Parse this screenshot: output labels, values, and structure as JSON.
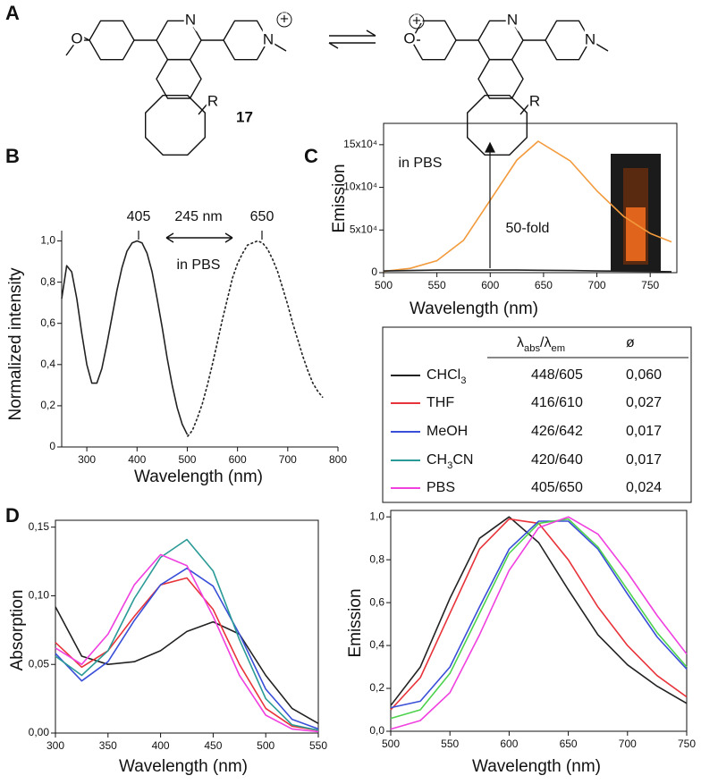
{
  "panel_labels": [
    "A",
    "B",
    "C",
    "D"
  ],
  "structures": {
    "compound": "17",
    "labels": [
      "O",
      "N",
      "N",
      "+",
      "R",
      "O",
      "+",
      "N",
      "N",
      "R"
    ]
  },
  "chart_data": [
    {
      "type": "line",
      "x_label": "Wavelength (nm)",
      "y_label": "Normalized intensity",
      "xlim": [
        250,
        800
      ],
      "ylim": [
        0,
        1.05
      ],
      "xticks": [
        300,
        400,
        500,
        600,
        700,
        800
      ],
      "yticks": [
        0,
        {
          "value": 0.2,
          "label": "0,2"
        },
        {
          "value": 0.4,
          "label": "0,4"
        },
        {
          "value": 0.6,
          "label": "0,6"
        },
        {
          "value": 0.8,
          "label": "0,8"
        },
        {
          "value": 1,
          "label": "1,0"
        }
      ],
      "frame": false,
      "annotations": [
        "405",
        "650",
        "245 nm",
        "in PBS"
      ],
      "x": [
        250,
        260,
        270,
        280,
        290,
        300,
        310,
        320,
        330,
        340,
        350,
        360,
        370,
        380,
        390,
        400,
        410,
        420,
        430,
        440,
        450,
        460,
        470,
        480,
        490,
        500,
        510,
        520,
        530,
        540,
        550,
        560,
        570,
        580,
        590,
        600,
        610,
        620,
        630,
        640,
        650,
        660,
        670,
        680,
        690,
        700,
        710,
        720,
        730,
        740,
        750,
        760,
        770
      ],
      "series": [
        {
          "color": "#222222",
          "line_style": "solid",
          "values": [
            0.72,
            0.88,
            0.85,
            0.72,
            0.55,
            0.4,
            0.31,
            0.31,
            0.38,
            0.5,
            0.63,
            0.76,
            0.87,
            0.95,
            0.99,
            1.0,
            0.99,
            0.94,
            0.85,
            0.72,
            0.58,
            0.43,
            0.3,
            0.19,
            0.11,
            0.06,
            null,
            null,
            null,
            null,
            null,
            null,
            null,
            null,
            null,
            null,
            null,
            null,
            null,
            null,
            null,
            null,
            null,
            null,
            null,
            null,
            null,
            null,
            null,
            null,
            null,
            null,
            null
          ]
        },
        {
          "color": "#222222",
          "line_style": "dashed",
          "values": [
            null,
            null,
            null,
            null,
            null,
            null,
            null,
            null,
            null,
            null,
            null,
            null,
            null,
            null,
            null,
            null,
            null,
            null,
            null,
            null,
            null,
            null,
            null,
            null,
            null,
            0.05,
            0.08,
            0.14,
            0.21,
            0.3,
            0.4,
            0.51,
            0.62,
            0.72,
            0.82,
            0.89,
            0.94,
            0.98,
            0.99,
            1.0,
            0.99,
            0.96,
            0.91,
            0.85,
            0.77,
            0.69,
            0.6,
            0.52,
            0.44,
            0.37,
            0.31,
            0.27,
            0.24
          ]
        }
      ]
    },
    {
      "type": "line",
      "x_label": "Wavelength (nm)",
      "y_label": "Emission",
      "xlim": [
        500,
        775
      ],
      "ylim": [
        0,
        175000
      ],
      "xticks": [
        500,
        550,
        600,
        650,
        700,
        750
      ],
      "yticks": [
        0,
        {
          "value": 50000,
          "label": "5x10⁴"
        },
        {
          "value": 100000,
          "label": "10x10⁴"
        },
        {
          "value": 150000,
          "label": "15x10⁴"
        }
      ],
      "frame": true,
      "annotations": [
        "in PBS",
        "50-fold"
      ],
      "x": [
        500,
        525,
        550,
        575,
        600,
        625,
        645,
        675,
        700,
        725,
        750,
        770
      ],
      "series": [
        {
          "color": "#f39a3c",
          "line_style": "solid",
          "values": [
            1500,
            5000,
            14000,
            38000,
            85000,
            132000,
            154000,
            131000,
            96000,
            66000,
            46000,
            36000
          ]
        },
        {
          "color": "#222222",
          "line_style": "solid",
          "values": [
            2000,
            2500,
            3000,
            3000,
            3000,
            3000,
            2800,
            2500,
            2000,
            1800,
            1500,
            1200
          ]
        }
      ]
    },
    {
      "type": "line",
      "x_label": "Wavelength (nm)",
      "y_label": "Absorption",
      "xlim": [
        300,
        550
      ],
      "ylim": [
        0,
        0.155
      ],
      "xticks": [
        300,
        350,
        400,
        450,
        500,
        550
      ],
      "yticks": [
        {
          "value": 0,
          "label": "0,00"
        },
        {
          "value": 0.05,
          "label": "0,05"
        },
        {
          "value": 0.1,
          "label": "0,10"
        },
        {
          "value": 0.15,
          "label": "0,15"
        }
      ],
      "frame": true,
      "x": [
        300,
        325,
        350,
        375,
        400,
        425,
        450,
        475,
        500,
        525,
        550
      ],
      "series": [
        {
          "color": "#222222",
          "line_style": "solid",
          "values": [
            0.092,
            0.056,
            0.05,
            0.052,
            0.06,
            0.074,
            0.081,
            0.072,
            0.042,
            0.018,
            0.007
          ]
        },
        {
          "color": "#e8333a",
          "line_style": "solid",
          "values": [
            0.066,
            0.048,
            0.06,
            0.085,
            0.108,
            0.113,
            0.09,
            0.05,
            0.018,
            0.005,
            0.002
          ]
        },
        {
          "color": "#3a4fd8",
          "line_style": "solid",
          "values": [
            0.058,
            0.038,
            0.052,
            0.082,
            0.108,
            0.12,
            0.107,
            0.072,
            0.032,
            0.01,
            0.003
          ]
        },
        {
          "color": "#2a9a96",
          "line_style": "solid",
          "values": [
            0.056,
            0.042,
            0.06,
            0.098,
            0.128,
            0.141,
            0.118,
            0.068,
            0.025,
            0.006,
            0.002
          ]
        },
        {
          "color": "#f040e0",
          "line_style": "solid",
          "values": [
            0.062,
            0.05,
            0.072,
            0.108,
            0.13,
            0.122,
            0.085,
            0.042,
            0.013,
            0.003,
            0.001
          ]
        }
      ]
    },
    {
      "type": "line",
      "x_label": "Wavelength (nm)",
      "y_label": "Emission",
      "xlim": [
        500,
        750
      ],
      "ylim": [
        0,
        1.03
      ],
      "xticks": [
        500,
        550,
        600,
        650,
        700,
        750
      ],
      "yticks": [
        {
          "value": 0,
          "label": "0,0"
        },
        {
          "value": 0.2,
          "label": "0,2"
        },
        {
          "value": 0.4,
          "label": "0,4"
        },
        {
          "value": 0.6,
          "label": "0,6"
        },
        {
          "value": 0.8,
          "label": "0,8"
        },
        {
          "value": 1,
          "label": "1,0"
        }
      ],
      "frame": true,
      "x": [
        500,
        525,
        550,
        575,
        600,
        625,
        650,
        675,
        700,
        725,
        750
      ],
      "series": [
        {
          "color": "#222222",
          "line_style": "solid",
          "values": [
            0.12,
            0.3,
            0.62,
            0.9,
            1.0,
            0.88,
            0.66,
            0.45,
            0.31,
            0.21,
            0.13
          ]
        },
        {
          "color": "#e8333a",
          "line_style": "solid",
          "values": [
            0.1,
            0.25,
            0.55,
            0.85,
            0.99,
            0.97,
            0.8,
            0.58,
            0.4,
            0.26,
            0.16
          ]
        },
        {
          "color": "#3a4fd8",
          "line_style": "solid",
          "values": [
            0.11,
            0.14,
            0.3,
            0.58,
            0.85,
            0.98,
            0.98,
            0.85,
            0.64,
            0.44,
            0.29
          ]
        },
        {
          "color": "#4cd24c",
          "line_style": "solid",
          "values": [
            0.06,
            0.1,
            0.27,
            0.55,
            0.83,
            0.97,
            0.99,
            0.86,
            0.66,
            0.46,
            0.3
          ]
        },
        {
          "color": "#f040e0",
          "line_style": "solid",
          "values": [
            0.01,
            0.05,
            0.18,
            0.45,
            0.75,
            0.95,
            1.0,
            0.92,
            0.74,
            0.54,
            0.36
          ]
        }
      ]
    }
  ],
  "table": {
    "header": [
      "λ",
      "abs",
      "/λ",
      "em"
    ],
    "phi_header": "ø",
    "rows": [
      {
        "name": [
          "CHCl",
          "3"
        ],
        "color": "#222222",
        "wavelengths": "448/605",
        "phi": "0,060"
      },
      {
        "name": [
          "THF"
        ],
        "color": "#e8333a",
        "wavelengths": "416/610",
        "phi": "0,027"
      },
      {
        "name": [
          "MeOH"
        ],
        "color": "#3a4fd8",
        "wavelengths": "426/642",
        "phi": "0,017"
      },
      {
        "name": [
          "CH",
          "3",
          "CN"
        ],
        "color": "#2a9a96",
        "wavelengths": "420/640",
        "phi": "0,017"
      },
      {
        "name": [
          "PBS"
        ],
        "color": "#f040e0",
        "wavelengths": "405/650",
        "phi": "0,024"
      }
    ]
  }
}
